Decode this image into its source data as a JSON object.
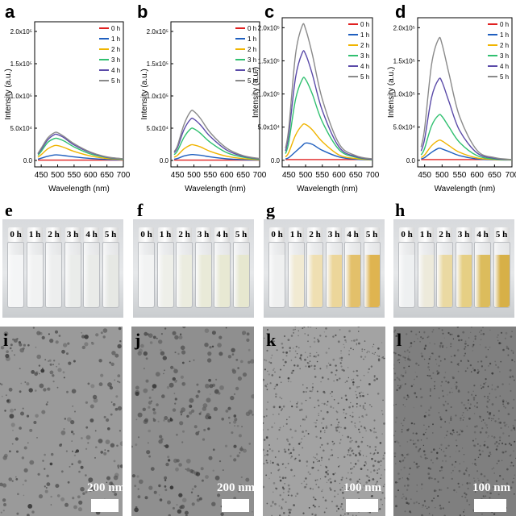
{
  "chart_data": [
    {
      "panel": "a",
      "type": "line",
      "xlabel": "Wavelength (nm)",
      "ylabel": "Intensity (a.u.)",
      "xlim": [
        430,
        700
      ],
      "ylim": [
        -10000,
        215000
      ],
      "xticks": [
        "450",
        "500",
        "550",
        "600",
        "650",
        "700"
      ],
      "yticks": [
        "0.0",
        "5.0x10⁴",
        "1.0x10⁵",
        "1.5x10⁵",
        "2.0x10⁵"
      ],
      "series": [
        {
          "name": "0 h",
          "color": "#e02020",
          "x": [
            440,
            450,
            470,
            490,
            500,
            520,
            550,
            600,
            650,
            700
          ],
          "y": [
            500,
            500,
            500,
            500,
            500,
            500,
            500,
            500,
            500,
            500
          ]
        },
        {
          "name": "1 h",
          "color": "#1f5fbf",
          "x": [
            440,
            450,
            470,
            490,
            500,
            520,
            550,
            600,
            650,
            700
          ],
          "y": [
            2000,
            3500,
            6500,
            8500,
            8500,
            7500,
            5500,
            3000,
            1500,
            800
          ]
        },
        {
          "name": "2 h",
          "color": "#f0b400",
          "x": [
            440,
            450,
            470,
            490,
            500,
            520,
            550,
            600,
            650,
            700
          ],
          "y": [
            5000,
            9000,
            18000,
            23000,
            23000,
            20000,
            14000,
            7000,
            3000,
            1500
          ]
        },
        {
          "name": "3 h",
          "color": "#30c070",
          "x": [
            440,
            450,
            470,
            490,
            500,
            520,
            550,
            600,
            650,
            700
          ],
          "y": [
            8000,
            14000,
            28000,
            34000,
            34000,
            30000,
            21000,
            10000,
            4500,
            2000
          ]
        },
        {
          "name": "4 h",
          "color": "#5a4aa8",
          "x": [
            440,
            450,
            470,
            490,
            500,
            520,
            550,
            600,
            650,
            700
          ],
          "y": [
            10000,
            17000,
            32000,
            40000,
            40000,
            35000,
            24000,
            12000,
            5000,
            2500
          ]
        },
        {
          "name": "5 h",
          "color": "#8a8a8a",
          "x": [
            440,
            450,
            470,
            490,
            500,
            520,
            550,
            600,
            650,
            700
          ],
          "y": [
            11000,
            19000,
            35000,
            43000,
            43000,
            37000,
            26000,
            13000,
            5500,
            2500
          ]
        }
      ]
    },
    {
      "panel": "b",
      "type": "line",
      "xlabel": "Wavelength (nm)",
      "ylabel": "Intensity (a.u.)",
      "xlim": [
        430,
        700
      ],
      "ylim": [
        -10000,
        215000
      ],
      "xticks": [
        "450",
        "500",
        "550",
        "600",
        "650",
        "700"
      ],
      "yticks": [
        "0.0",
        "5.0x10⁴",
        "1.0x10⁵",
        "1.5x10⁵",
        "2.0x10⁵"
      ],
      "series": [
        {
          "name": "0 h",
          "color": "#e02020",
          "x": [
            440,
            450,
            470,
            490,
            500,
            520,
            550,
            600,
            650,
            700
          ],
          "y": [
            500,
            500,
            500,
            500,
            500,
            500,
            500,
            500,
            500,
            500
          ]
        },
        {
          "name": "1 h",
          "color": "#1f5fbf",
          "x": [
            440,
            450,
            470,
            490,
            500,
            520,
            550,
            600,
            650,
            700
          ],
          "y": [
            2000,
            3000,
            7000,
            9000,
            9000,
            8000,
            5500,
            2500,
            1200,
            600
          ]
        },
        {
          "name": "2 h",
          "color": "#f0b400",
          "x": [
            440,
            450,
            470,
            490,
            500,
            520,
            550,
            600,
            650,
            700
          ],
          "y": [
            5000,
            8000,
            18000,
            24000,
            24000,
            21000,
            14000,
            6500,
            2800,
            1200
          ]
        },
        {
          "name": "3 h",
          "color": "#30c070",
          "x": [
            440,
            450,
            470,
            490,
            500,
            520,
            550,
            600,
            650,
            700
          ],
          "y": [
            9000,
            15000,
            36000,
            49000,
            49000,
            42000,
            28000,
            12000,
            5000,
            2000
          ]
        },
        {
          "name": "4 h",
          "color": "#5a4aa8",
          "x": [
            440,
            450,
            470,
            490,
            500,
            520,
            550,
            600,
            650,
            700
          ],
          "y": [
            12000,
            20000,
            48000,
            64000,
            64000,
            55000,
            37000,
            16000,
            6500,
            2500
          ]
        },
        {
          "name": "5 h",
          "color": "#8a8a8a",
          "x": [
            440,
            450,
            470,
            490,
            500,
            520,
            550,
            600,
            650,
            700
          ],
          "y": [
            14000,
            23000,
            56000,
            76000,
            76000,
            65000,
            43000,
            19000,
            7500,
            3000
          ]
        }
      ]
    },
    {
      "panel": "c",
      "type": "line",
      "xlabel": "Wavelength (nm)",
      "ylabel": "Intensity (a.u.)",
      "xlim": [
        430,
        700
      ],
      "ylim": [
        -10000,
        215000
      ],
      "xticks": [
        "450",
        "500",
        "550",
        "600",
        "650",
        "700"
      ],
      "yticks": [
        "0.0",
        "5.0x10⁴",
        "1.0x10⁵",
        "1.5x10⁵",
        "2.0x10⁵"
      ],
      "series": [
        {
          "name": "0 h",
          "color": "#e02020",
          "x": [
            440,
            450,
            470,
            490,
            500,
            520,
            550,
            600,
            650,
            700
          ],
          "y": [
            1000,
            1000,
            1000,
            1000,
            1000,
            1000,
            1000,
            1000,
            1000,
            1000
          ]
        },
        {
          "name": "1 h",
          "color": "#1f5fbf",
          "x": [
            440,
            450,
            470,
            490,
            500,
            520,
            550,
            600,
            650,
            700
          ],
          "y": [
            2000,
            4000,
            13000,
            22000,
            26000,
            24000,
            15000,
            5000,
            1500,
            500
          ]
        },
        {
          "name": "2 h",
          "color": "#f0b400",
          "x": [
            440,
            450,
            470,
            490,
            500,
            520,
            550,
            600,
            650,
            700
          ],
          "y": [
            5000,
            12000,
            38000,
            53000,
            54000,
            46000,
            28000,
            8000,
            2500,
            800
          ]
        },
        {
          "name": "3 h",
          "color": "#30c070",
          "x": [
            440,
            450,
            470,
            490,
            500,
            520,
            550,
            600,
            650,
            700
          ],
          "y": [
            10000,
            28000,
            92000,
            122000,
            122000,
            100000,
            58000,
            16000,
            4500,
            1200
          ]
        },
        {
          "name": "4 h",
          "color": "#5a4aa8",
          "x": [
            440,
            450,
            470,
            490,
            500,
            520,
            550,
            600,
            650,
            700
          ],
          "y": [
            14000,
            40000,
            125000,
            162000,
            160000,
            130000,
            75000,
            20000,
            5500,
            1500
          ]
        },
        {
          "name": "5 h",
          "color": "#8a8a8a",
          "x": [
            440,
            450,
            470,
            490,
            500,
            520,
            550,
            600,
            650,
            700
          ],
          "y": [
            18000,
            50000,
            160000,
            203000,
            198000,
            160000,
            92000,
            25000,
            7000,
            2000
          ]
        }
      ]
    },
    {
      "panel": "d",
      "type": "line",
      "xlabel": "Wavelength (nm)",
      "ylabel": "Intensity (a.u.)",
      "xlim": [
        430,
        700
      ],
      "ylim": [
        -10000,
        215000
      ],
      "xticks": [
        "450",
        "500",
        "550",
        "600",
        "650",
        "700"
      ],
      "yticks": [
        "0.0",
        "5.0x10⁴",
        "1.0x10⁵",
        "1.5x10⁵",
        "2.0x10⁵"
      ],
      "series": [
        {
          "name": "0 h",
          "color": "#e02020",
          "x": [
            440,
            450,
            470,
            490,
            500,
            520,
            550,
            600,
            650,
            700
          ],
          "y": [
            1000,
            1000,
            1000,
            1000,
            1000,
            1000,
            1000,
            1000,
            1000,
            1000
          ]
        },
        {
          "name": "1 h",
          "color": "#1f5fbf",
          "x": [
            440,
            450,
            470,
            490,
            500,
            520,
            550,
            600,
            650,
            700
          ],
          "y": [
            2000,
            4000,
            12000,
            18000,
            17000,
            13000,
            7000,
            2000,
            800,
            400
          ]
        },
        {
          "name": "2 h",
          "color": "#f0b400",
          "x": [
            440,
            450,
            470,
            490,
            500,
            520,
            550,
            600,
            650,
            700
          ],
          "y": [
            4000,
            8000,
            22000,
            30000,
            29000,
            22000,
            12000,
            3500,
            1200,
            500
          ]
        },
        {
          "name": "3 h",
          "color": "#30c070",
          "x": [
            440,
            450,
            470,
            490,
            500,
            520,
            550,
            600,
            650,
            700
          ],
          "y": [
            8000,
            18000,
            52000,
            68000,
            66000,
            50000,
            27000,
            7000,
            2000,
            800
          ]
        },
        {
          "name": "4 h",
          "color": "#5a4aa8",
          "x": [
            440,
            450,
            470,
            490,
            500,
            520,
            550,
            600,
            650,
            700
          ],
          "y": [
            14000,
            32000,
            95000,
            122000,
            118000,
            88000,
            45000,
            11000,
            3000,
            1000
          ]
        },
        {
          "name": "5 h",
          "color": "#8a8a8a",
          "x": [
            440,
            450,
            470,
            490,
            500,
            520,
            550,
            600,
            650,
            700
          ],
          "y": [
            20000,
            48000,
            145000,
            183000,
            175000,
            130000,
            66000,
            15000,
            4000,
            1200
          ]
        }
      ]
    }
  ],
  "panels": {
    "charts": [
      "a",
      "b",
      "c",
      "d"
    ],
    "photos": [
      {
        "letter": "e",
        "labels": [
          "0 h",
          "1 h",
          "2 h",
          "3 h",
          "4 h",
          "5 h"
        ],
        "liquid": [
          "#f4f5f6",
          "#f1f2f2",
          "#edeeee",
          "#eaecea",
          "#e9ebe8",
          "#e6e8e4"
        ]
      },
      {
        "letter": "f",
        "labels": [
          "0 h",
          "1 h",
          "2 h",
          "3 h",
          "4 h",
          "5 h"
        ],
        "liquid": [
          "#f2f3f3",
          "#eeefe9",
          "#ebecdf",
          "#e9ead8",
          "#e8e9d3",
          "#e6e7cf"
        ]
      },
      {
        "letter": "g",
        "labels": [
          "0 h",
          "1 h",
          "2 h",
          "3 h",
          "4 h",
          "5 h"
        ],
        "liquid": [
          "#eff0f0",
          "#f1ead2",
          "#efdfb2",
          "#ecd69a",
          "#e3c06a",
          "#dfb450"
        ]
      },
      {
        "letter": "h",
        "labels": [
          "0 h",
          "1 h",
          "2 h",
          "3 h",
          "4 h",
          "5 h"
        ],
        "liquid": [
          "#eef0f1",
          "#edeadb",
          "#ead9a2",
          "#e6cf84",
          "#dcbc5c",
          "#d7b047"
        ]
      }
    ],
    "tem": [
      {
        "letter": "i",
        "scale": "200 nm",
        "bg": "#9a9a9a"
      },
      {
        "letter": "j",
        "scale": "200 nm",
        "bg": "#8f8f8f"
      },
      {
        "letter": "k",
        "scale": "100 nm",
        "bg": "#a3a3a3"
      },
      {
        "letter": "l",
        "scale": "100 nm",
        "bg": "#7f7f7f"
      }
    ]
  }
}
